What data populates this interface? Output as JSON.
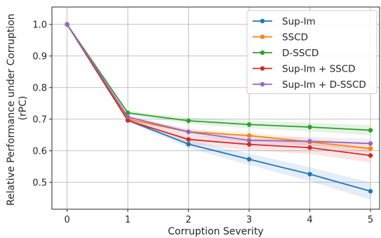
{
  "chart_data": {
    "type": "line",
    "title": "",
    "xlabel": "Corruption Severity",
    "ylabel_lines": [
      "Relative Performance under Corruption",
      "(rPC)"
    ],
    "x": [
      0,
      1,
      2,
      3,
      4,
      5
    ],
    "xlim": [
      -0.25,
      5.15
    ],
    "ylim": [
      0.415,
      1.055
    ],
    "xticks": [
      0,
      1,
      2,
      3,
      4,
      5
    ],
    "yticks": [
      0.5,
      0.6,
      0.7,
      0.8,
      0.9,
      1.0
    ],
    "ytick_labels": [
      "0.5",
      "0.6",
      "0.7",
      "0.8",
      "0.9",
      "1.0"
    ],
    "grid": true,
    "legend_position": "top-right",
    "series": [
      {
        "name": "Sup-Im",
        "color": "#1f77b4",
        "values": [
          1.0,
          0.697,
          0.621,
          0.573,
          0.526,
          0.472
        ],
        "band": [
          0,
          0.005,
          0.012,
          0.018,
          0.022,
          0.027
        ]
      },
      {
        "name": "SSCD",
        "color": "#ff7f0e",
        "values": [
          1.0,
          0.7,
          0.66,
          0.648,
          0.628,
          0.607
        ],
        "band": [
          0,
          0.004,
          0.008,
          0.01,
          0.012,
          0.014
        ]
      },
      {
        "name": "D-SSCD",
        "color": "#2ca02c",
        "values": [
          1.0,
          0.72,
          0.695,
          0.683,
          0.675,
          0.665
        ],
        "band": [
          0,
          0.006,
          0.01,
          0.012,
          0.014,
          0.016
        ]
      },
      {
        "name": "Sup-Im + SSCD",
        "color": "#d62728",
        "values": [
          1.0,
          0.696,
          0.636,
          0.62,
          0.61,
          0.585
        ],
        "band": [
          0,
          0.006,
          0.014,
          0.018,
          0.02,
          0.022
        ]
      },
      {
        "name": "Sup-Im + D-SSCD",
        "color": "#9467bd",
        "values": [
          1.0,
          0.707,
          0.66,
          0.633,
          0.63,
          0.623
        ],
        "band": [
          0,
          0.006,
          0.01,
          0.012,
          0.014,
          0.015
        ]
      }
    ]
  }
}
